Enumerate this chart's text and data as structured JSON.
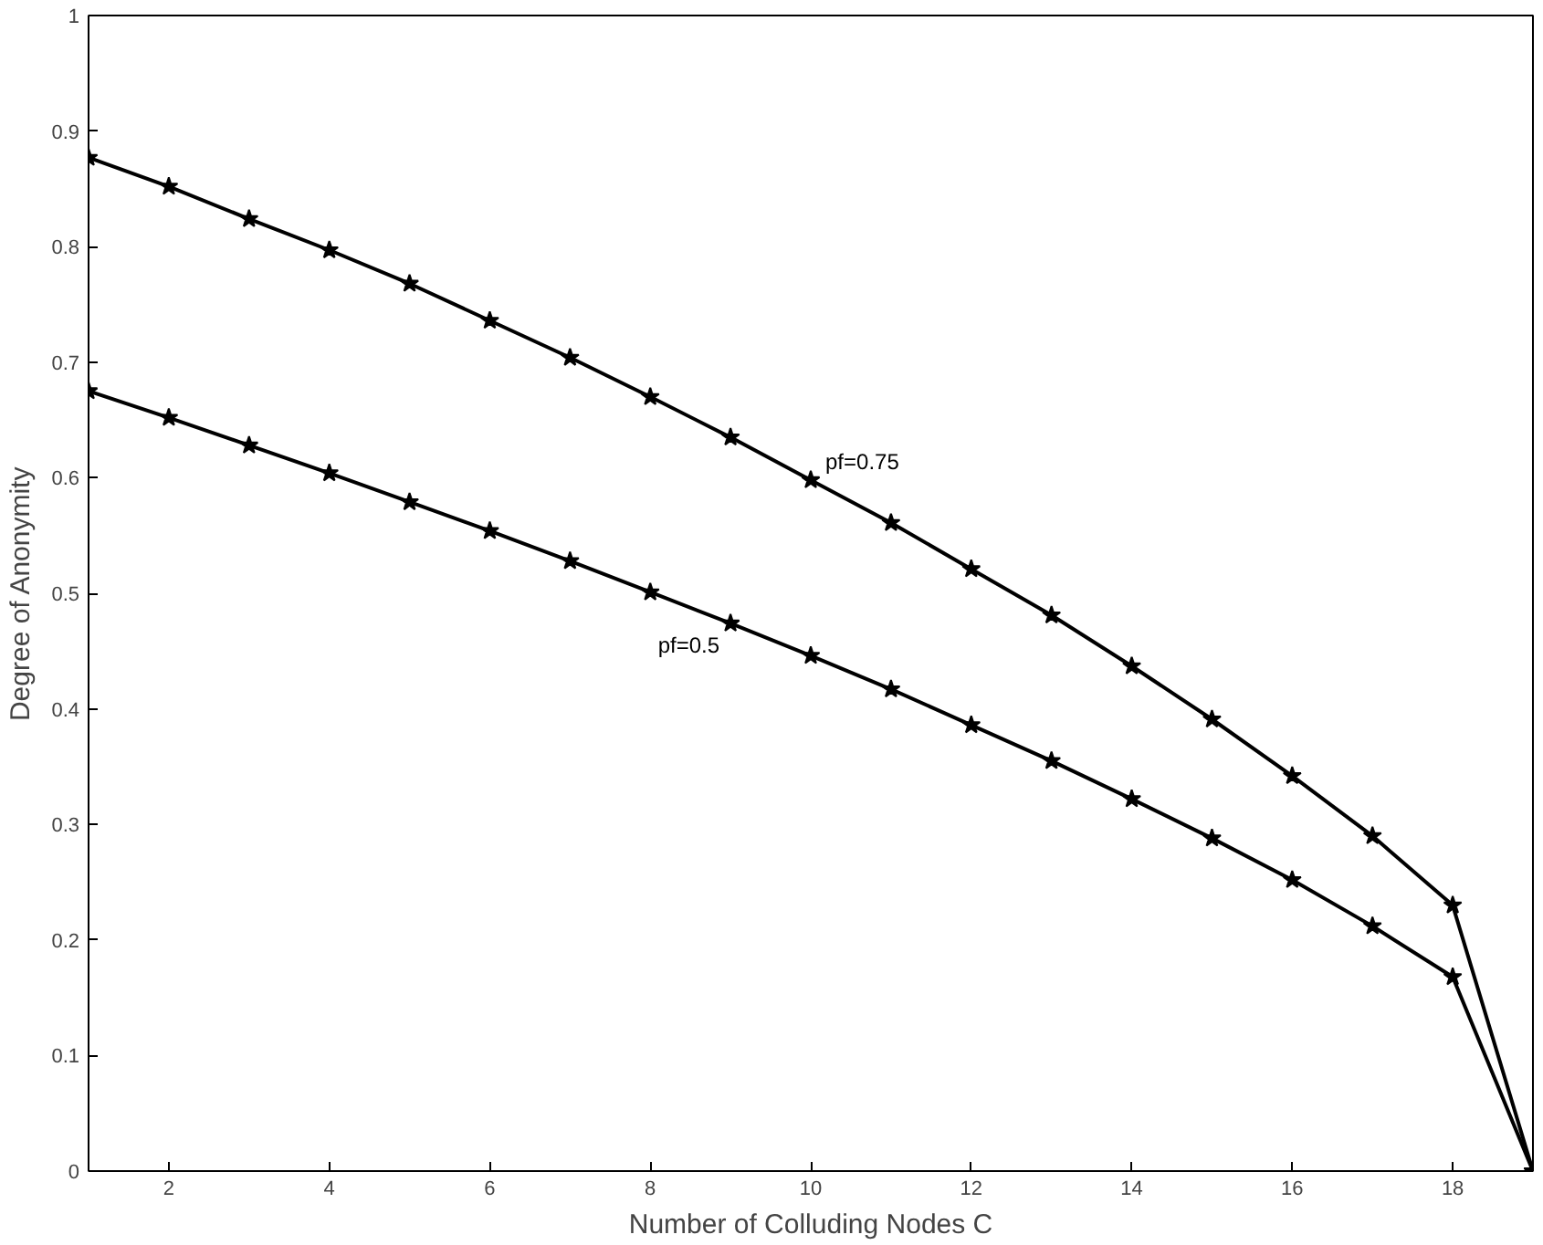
{
  "chart_data": {
    "type": "line",
    "xlabel": "Number of Colluding Nodes C",
    "ylabel": "Degree of Anonymity",
    "x": [
      1,
      2,
      3,
      4,
      5,
      6,
      7,
      8,
      9,
      10,
      11,
      12,
      13,
      14,
      15,
      16,
      17,
      18,
      19
    ],
    "series": [
      {
        "name": "pf=0.75",
        "color": "#000000",
        "values": [
          0.877,
          0.852,
          0.824,
          0.797,
          0.768,
          0.736,
          0.704,
          0.67,
          0.635,
          0.598,
          0.561,
          0.521,
          0.481,
          0.437,
          0.391,
          0.342,
          0.29,
          0.23,
          0
        ]
      },
      {
        "name": "pf=0.5",
        "color": "#000000",
        "values": [
          0.675,
          0.652,
          0.628,
          0.604,
          0.579,
          0.554,
          0.528,
          0.501,
          0.474,
          0.446,
          0.417,
          0.386,
          0.355,
          0.322,
          0.288,
          0.252,
          0.212,
          0.168,
          0
        ]
      }
    ],
    "xlim": [
      1,
      19
    ],
    "xticks": [
      2,
      4,
      6,
      8,
      10,
      12,
      14,
      16,
      18
    ],
    "ylim": [
      0,
      1
    ],
    "yticks": [
      0,
      0.1,
      0.2,
      0.3,
      0.4,
      0.5,
      0.6,
      0.7,
      0.8,
      0.9,
      1
    ],
    "grid": false,
    "marker": "star",
    "line_style": "solid"
  }
}
